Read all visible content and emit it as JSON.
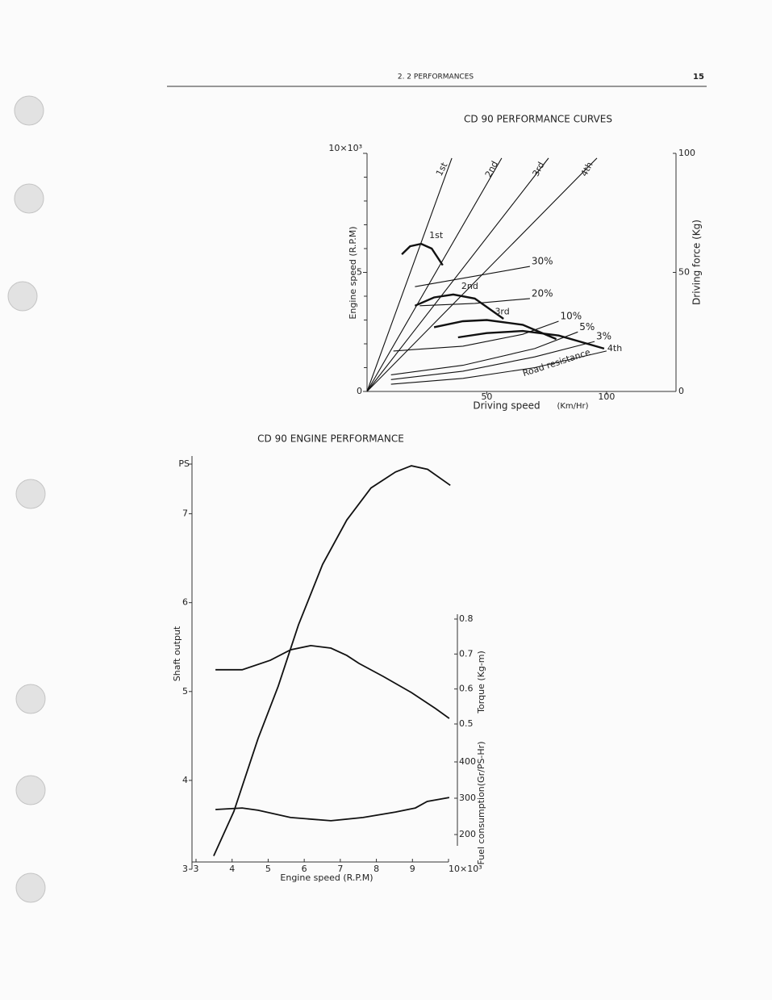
{
  "header": {
    "section": "2. 2 PERFORMANCES",
    "page_number": "15"
  },
  "chart_data": [
    {
      "type": "line",
      "title": "CD 90 PERFORMANCE CURVES",
      "xlabel": "Driving speed",
      "xunit": "(Km/Hr)",
      "ylabel": "Engine speed (R.P.M)",
      "y2label": "Driving force (Kg)",
      "xlim": [
        0,
        129
      ],
      "ylim": [
        0,
        10
      ],
      "y2lim": [
        0,
        100
      ],
      "xticks": [
        50,
        100
      ],
      "yticks": [
        0,
        5,
        {
          "value": 10,
          "label": "10×10³"
        }
      ],
      "minor_yticks": [
        1,
        2,
        3,
        4,
        6,
        7,
        8,
        9
      ],
      "y2ticks": [
        0,
        50,
        100
      ],
      "color": "#111111",
      "series": [
        {
          "name": "1st",
          "group": "gear",
          "x": [
            0,
            35.4
          ],
          "values": [
            0,
            9.8
          ]
        },
        {
          "name": "2nd",
          "group": "gear",
          "x": [
            0,
            56.2
          ],
          "values": [
            0,
            9.8
          ]
        },
        {
          "name": "3rd",
          "group": "gear",
          "x": [
            0,
            75.8
          ],
          "values": [
            0,
            9.8
          ]
        },
        {
          "name": "4th",
          "group": "gear",
          "x": [
            0,
            96
          ],
          "values": [
            0,
            9.8
          ]
        },
        {
          "name": "1st",
          "group": "force",
          "axis": "y2",
          "x": [
            14.5,
            18,
            22.6,
            27,
            31.6
          ],
          "values": [
            57.6,
            61,
            62,
            60,
            53
          ]
        },
        {
          "name": "2nd",
          "group": "force",
          "axis": "y2",
          "x": [
            20,
            28,
            36,
            45,
            57
          ],
          "values": [
            36,
            39.5,
            40.7,
            39,
            30.5
          ]
        },
        {
          "name": "3rd",
          "group": "force",
          "axis": "y2",
          "x": [
            28,
            40,
            50,
            65,
            79
          ],
          "values": [
            27,
            29.5,
            30,
            28,
            22
          ]
        },
        {
          "name": "4th",
          "group": "force",
          "axis": "y2",
          "x": [
            38,
            50,
            65,
            80,
            99
          ],
          "values": [
            22.7,
            24.5,
            25.4,
            23.5,
            18
          ]
        },
        {
          "name": "30%",
          "group": "resistance",
          "axis": "y2",
          "x": [
            20,
            68
          ],
          "values": [
            44,
            52.5
          ]
        },
        {
          "name": "20%",
          "group": "resistance",
          "axis": "y2",
          "x": [
            22,
            45,
            68
          ],
          "values": [
            36,
            37,
            39
          ]
        },
        {
          "name": "10%",
          "group": "resistance",
          "axis": "y2",
          "x": [
            11,
            40,
            65,
            80
          ],
          "values": [
            17,
            19,
            24,
            29.5
          ]
        },
        {
          "name": "5%",
          "group": "resistance",
          "axis": "y2",
          "x": [
            10,
            40,
            70,
            88
          ],
          "values": [
            7,
            11,
            18,
            25
          ]
        },
        {
          "name": "3%",
          "group": "resistance",
          "axis": "y2",
          "x": [
            10,
            40,
            70,
            95
          ],
          "values": [
            5,
            8.5,
            14.5,
            21
          ]
        },
        {
          "name": "Road resistance",
          "group": "resistance",
          "axis": "y2",
          "x": [
            10,
            40,
            70,
            100
          ],
          "values": [
            3,
            5.5,
            10,
            17
          ]
        }
      ]
    },
    {
      "type": "line",
      "title": "CD 90 ENGINE PERFORMANCE",
      "xlabel": "Engine speed (R.P.M)",
      "ylabel": "Shaft output",
      "yunit": "PS",
      "y2label": "Torque (Kg-m)",
      "y3label": "Fuel consumption(Gr/PS-Hr)",
      "xlim": [
        3,
        10
      ],
      "ylim": [
        3,
        7.65
      ],
      "y2lim": [
        0.5,
        0.8
      ],
      "y3lim": [
        200,
        400
      ],
      "xticks": [
        3,
        4,
        5,
        6,
        7,
        8,
        9,
        {
          "value": 10,
          "label": "10×10³"
        }
      ],
      "yticks": [
        3,
        4,
        5,
        6,
        7
      ],
      "y2ticks": [
        0.5,
        0.6,
        0.7,
        0.8
      ],
      "y3ticks": [
        200,
        300,
        400
      ],
      "color": "#111111",
      "series": [
        {
          "name": "Shaft output",
          "axis": "y",
          "x": [
            3.49,
            4.05,
            4.72,
            5.28,
            5.84,
            6.51,
            7.18,
            7.85,
            8.53,
            8.97,
            9.42,
            10.05
          ],
          "values": [
            3.15,
            3.65,
            4.47,
            5.06,
            5.75,
            6.43,
            6.93,
            7.29,
            7.47,
            7.54,
            7.5,
            7.32
          ]
        },
        {
          "name": "Torque",
          "axis": "y2",
          "x": [
            3.54,
            4.28,
            5.06,
            5.62,
            6.18,
            6.74,
            7.18,
            7.52,
            8.19,
            8.97,
            9.64,
            10.02
          ],
          "values": [
            0.655,
            0.655,
            0.682,
            0.712,
            0.724,
            0.717,
            0.696,
            0.673,
            0.636,
            0.59,
            0.544,
            0.516
          ]
        },
        {
          "name": "Fuel consumption",
          "axis": "y3",
          "x": [
            3.54,
            4.28,
            4.72,
            5.62,
            6.74,
            7.63,
            8.53,
            9.08,
            9.41,
            10.02
          ],
          "values": [
            269,
            273,
            267,
            247,
            238,
            247,
            262,
            273,
            291,
            302
          ]
        }
      ]
    }
  ]
}
